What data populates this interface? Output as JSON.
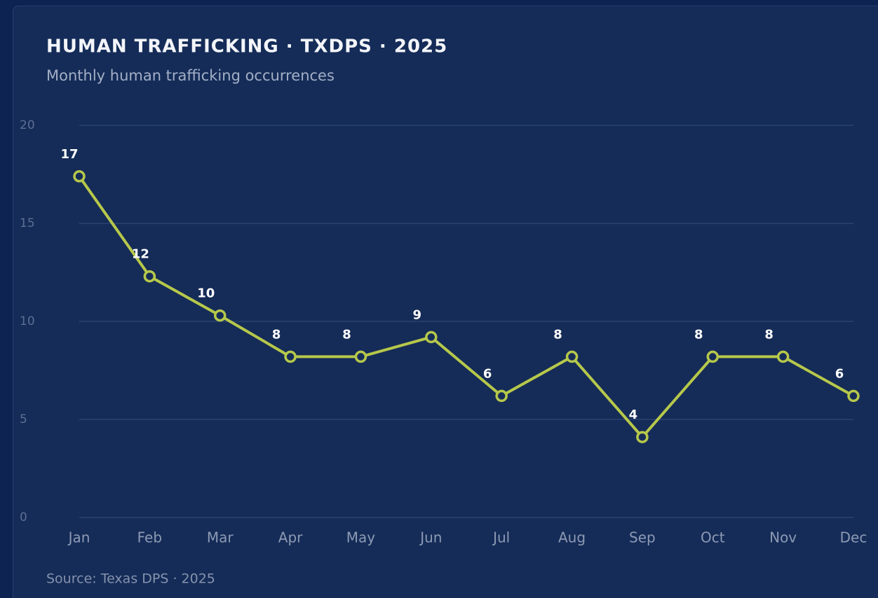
{
  "chart_data": {
    "type": "line",
    "title": "HUMAN TRAFFICKING · TXDPS · 2025",
    "subtitle": "Monthly human trafficking occurrences",
    "source": "Source: Texas DPS · 2025",
    "categories": [
      "Jan",
      "Feb",
      "Mar",
      "Apr",
      "May",
      "Jun",
      "Jul",
      "Aug",
      "Sep",
      "Oct",
      "Nov",
      "Dec"
    ],
    "series": [
      {
        "name": "Occurrences",
        "color": "#b6c84a",
        "values": [
          17.4,
          12.3,
          10.3,
          8.2,
          8.2,
          9.2,
          6.2,
          8.2,
          4.1,
          8.2,
          8.2,
          6.2
        ],
        "value_labels": [
          "17",
          "12",
          "10",
          "8",
          "8",
          "9",
          "6",
          "8",
          "4",
          "8",
          "8",
          "6"
        ]
      }
    ],
    "ylim": [
      0,
      20
    ],
    "yticks": [
      0,
      5,
      10,
      15,
      20
    ],
    "grid": true
  }
}
